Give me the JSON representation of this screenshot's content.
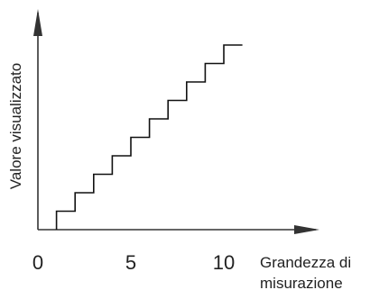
{
  "chart_data": {
    "type": "line",
    "title": "",
    "xlabel_lines": [
      "Grandezza di",
      "misurazione"
    ],
    "ylabel": "Valore visualizzato",
    "x_ticks": [
      0,
      5,
      10
    ],
    "x_tick_labels": [
      "0",
      "5",
      "10"
    ],
    "xlim": [
      0,
      12
    ],
    "ylim": [
      0,
      10
    ],
    "step_style": "post",
    "series": [
      {
        "x": [
          1,
          2,
          3,
          4,
          5,
          6,
          7,
          8,
          9,
          10,
          11
        ],
        "y": [
          1,
          2,
          3,
          4,
          5,
          6,
          7,
          8,
          9,
          10,
          10
        ]
      }
    ],
    "grid": false,
    "legend": "none",
    "colors": {
      "line": "#111111",
      "axis": "#333333"
    }
  }
}
